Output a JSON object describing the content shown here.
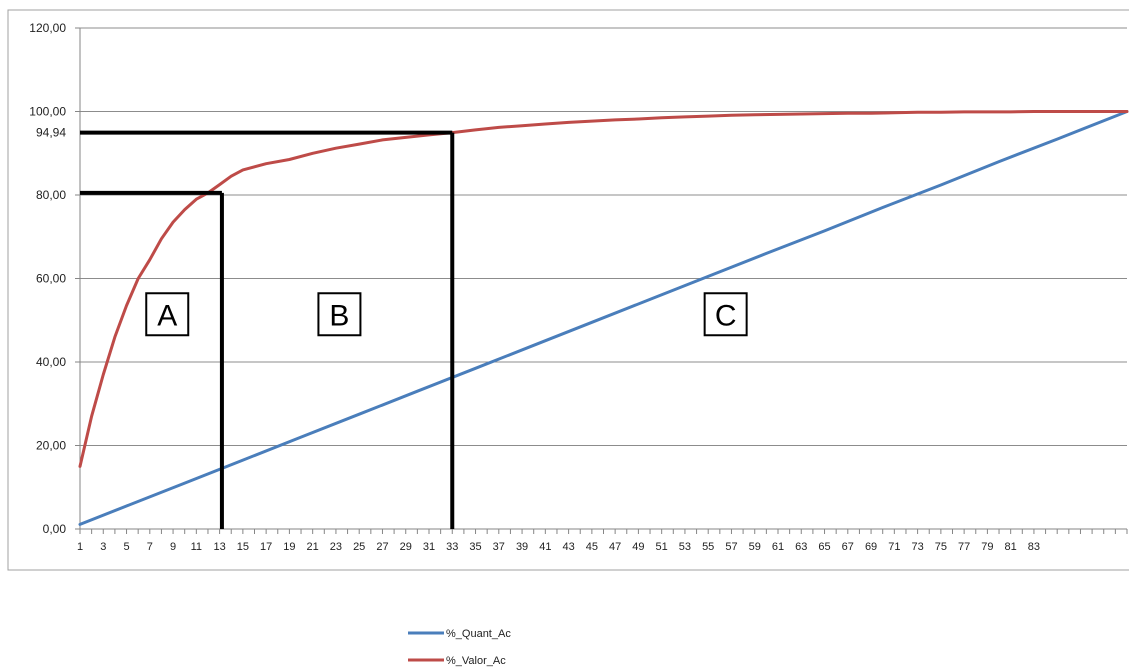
{
  "chart_data": {
    "type": "line",
    "title": "",
    "xlabel": "",
    "ylabel": "",
    "ylim": [
      0,
      120
    ],
    "yticks": [
      "0,00",
      "20,00",
      "40,00",
      "60,00",
      "80,00",
      "100,00",
      "120,00"
    ],
    "xlim": [
      1,
      91
    ],
    "xtick_labels": [
      "1",
      "3",
      "5",
      "7",
      "9",
      "11",
      "13",
      "15",
      "17",
      "19",
      "21",
      "23",
      "25",
      "27",
      "29",
      "31",
      "33",
      "35",
      "37",
      "39",
      "41",
      "43",
      "45",
      "47",
      "49",
      "51",
      "53",
      "55",
      "57",
      "59",
      "61",
      "63",
      "65",
      "67",
      "69",
      "71",
      "73",
      "75",
      "77",
      "79",
      "81",
      "83"
    ],
    "grid": "horizontal",
    "legend_position": "bottom",
    "series": [
      {
        "name": "%_Quant_Ac",
        "color": "#4a7ebb",
        "x": [
          1,
          5,
          10,
          15,
          20,
          25,
          30,
          35,
          40,
          45,
          50,
          55,
          60,
          65,
          70,
          75,
          80,
          85,
          90,
          91
        ],
        "values": [
          1.1,
          5.5,
          11,
          16.5,
          22,
          27.5,
          33,
          38.5,
          44,
          49.5,
          55,
          60.5,
          66,
          71.4,
          77,
          82.4,
          88,
          93.4,
          98.9,
          100
        ]
      },
      {
        "name": "%_Valor_Ac",
        "color": "#be4b48",
        "x": [
          1,
          2,
          3,
          4,
          5,
          6,
          7,
          8,
          9,
          10,
          11,
          12,
          13,
          14,
          15,
          17,
          19,
          21,
          23,
          25,
          27,
          29,
          31,
          33,
          35,
          37,
          39,
          41,
          43,
          45,
          47,
          49,
          51,
          53,
          55,
          57,
          59,
          61,
          63,
          65,
          67,
          69,
          71,
          73,
          75,
          77,
          79,
          81,
          83,
          85,
          87,
          89,
          91
        ],
        "values": [
          15,
          27,
          37,
          46,
          53.5,
          60,
          64.5,
          69.5,
          73.5,
          76.5,
          79,
          80.5,
          82.5,
          84.5,
          86,
          87.5,
          88.5,
          90,
          91.2,
          92.2,
          93.2,
          93.8,
          94.4,
          94.94,
          95.6,
          96.2,
          96.6,
          97,
          97.4,
          97.7,
          98,
          98.2,
          98.5,
          98.7,
          98.9,
          99.1,
          99.2,
          99.3,
          99.4,
          99.5,
          99.6,
          99.6,
          99.7,
          99.8,
          99.8,
          99.9,
          99.9,
          99.9,
          100,
          100,
          100,
          100,
          100
        ]
      }
    ],
    "annotations": {
      "y_marker_label": "94,94",
      "zones": [
        {
          "label": "A",
          "x": 8.5,
          "y": 50
        },
        {
          "label": "B",
          "x": 23.3,
          "y": 50
        },
        {
          "label": "C",
          "x": 56.5,
          "y": 50
        }
      ],
      "guide_lines": [
        {
          "x": 13.2,
          "y": 80.5
        },
        {
          "x": 33,
          "y": 94.94
        }
      ]
    }
  }
}
